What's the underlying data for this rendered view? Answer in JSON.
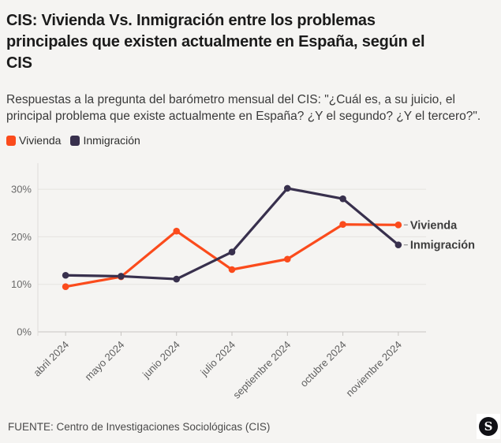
{
  "title": "CIS: Vivienda Vs. Inmigración entre los problemas principales que existen actualmente en España, según el CIS",
  "subtitle": "Respuestas a la pregunta del barómetro mensual del CIS: \"¿Cuál es, a su juicio, el principal problema que existe actualmente en España? ¿Y el segundo? ¿Y el tercero?\".",
  "legend": [
    {
      "label": "Vivienda",
      "color": "#fb4b1c"
    },
    {
      "label": "Inmigración",
      "color": "#38304d"
    }
  ],
  "chart_data": {
    "type": "line",
    "categories": [
      "abril 2024",
      "mayo 2024",
      "junio 2024",
      "julio 2024",
      "septiembre 2024",
      "octubre 2024",
      "noviembre 2024"
    ],
    "series": [
      {
        "name": "Vivienda",
        "color": "#fb4b1c",
        "values": [
          9.5,
          11.6,
          21.2,
          13.1,
          15.3,
          22.6,
          22.5
        ]
      },
      {
        "name": "Inmigración",
        "color": "#38304d",
        "values": [
          11.9,
          11.7,
          11.1,
          16.8,
          30.2,
          28.0,
          18.3
        ]
      }
    ],
    "title": "",
    "xlabel": "",
    "ylabel": "",
    "y_ticks": [
      0,
      10,
      20,
      30
    ],
    "y_tick_labels": [
      "0%",
      "10%",
      "20%",
      "30%"
    ],
    "ylim": [
      0,
      35.5
    ],
    "grid": true,
    "legend_position": "top-left",
    "end_labels": true
  },
  "footer": {
    "source": "FUENTE: Centro de Investigaciones Sociológicas (CIS)",
    "logo_letter": "S"
  },
  "colors": {
    "background": "#f5f4f2",
    "vivienda": "#fb4b1c",
    "inmigracion": "#38304d"
  }
}
